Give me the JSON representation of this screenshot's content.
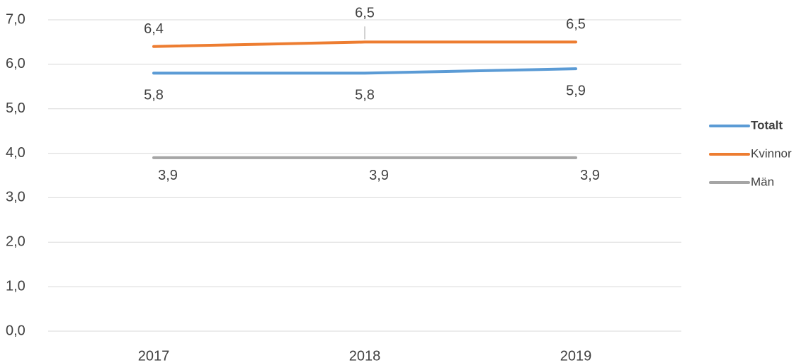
{
  "chart_data": {
    "type": "line",
    "categories": [
      "2017",
      "2018",
      "2019"
    ],
    "series": [
      {
        "name": "Totalt",
        "color": "#5b9bd5",
        "values": [
          5.8,
          5.8,
          5.9
        ],
        "value_labels": [
          "5,8",
          "5,8",
          "5,9"
        ]
      },
      {
        "name": "Kvinnor",
        "color": "#ed7d31",
        "values": [
          6.4,
          6.5,
          6.5
        ],
        "value_labels": [
          "6,4",
          "6,5",
          "6,5"
        ]
      },
      {
        "name": "Män",
        "color": "#a5a5a5",
        "values": [
          3.9,
          3.9,
          3.9
        ],
        "value_labels": [
          "3,9",
          "3,9",
          "3,9"
        ]
      }
    ],
    "ylim": [
      0,
      7
    ],
    "yticks": [
      {
        "value": 0,
        "label": "0,0"
      },
      {
        "value": 1,
        "label": "1,0"
      },
      {
        "value": 2,
        "label": "2,0"
      },
      {
        "value": 3,
        "label": "3,0"
      },
      {
        "value": 4,
        "label": "4,0"
      },
      {
        "value": 5,
        "label": "5,0"
      },
      {
        "value": 6,
        "label": "6,0"
      },
      {
        "value": 7,
        "label": "7,0"
      }
    ],
    "grid": true,
    "legend": "right"
  }
}
